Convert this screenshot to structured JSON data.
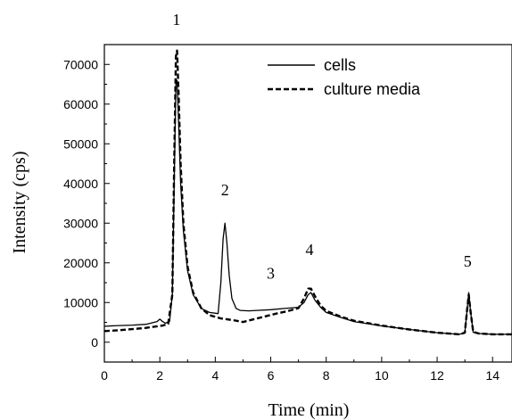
{
  "chart_data": {
    "type": "line",
    "xlabel": "Time (min)",
    "ylabel": "Intensity (cps)",
    "xlim": [
      0,
      14.7
    ],
    "ylim": [
      -5000,
      75000
    ],
    "xticks": [
      0,
      2,
      4,
      6,
      8,
      10,
      12,
      14
    ],
    "yticks": [
      0,
      10000,
      20000,
      30000,
      40000,
      50000,
      60000,
      70000
    ],
    "legend_position": "top-right",
    "series": [
      {
        "name": "cells",
        "style": "solid",
        "color": "#000000",
        "x": [
          0,
          0.5,
          1.0,
          1.5,
          1.9,
          2.0,
          2.1,
          2.2,
          2.35,
          2.45,
          2.52,
          2.58,
          2.62,
          2.68,
          2.75,
          2.85,
          3.0,
          3.2,
          3.5,
          3.8,
          4.1,
          4.2,
          4.28,
          4.35,
          4.42,
          4.5,
          4.6,
          4.75,
          4.9,
          5.2,
          5.5,
          6.0,
          6.5,
          7.0,
          7.2,
          7.35,
          7.45,
          7.6,
          7.8,
          8.0,
          8.5,
          9.0,
          10.0,
          11.0,
          12.0,
          12.8,
          13.0,
          13.08,
          13.14,
          13.2,
          13.3,
          13.5,
          14.0,
          14.7
        ],
        "y": [
          4000,
          4200,
          4300,
          4500,
          5200,
          5800,
          5200,
          4800,
          5200,
          12000,
          40000,
          65000,
          66000,
          55000,
          40000,
          28000,
          18000,
          12000,
          8500,
          7500,
          7200,
          15000,
          26000,
          30000,
          25000,
          17000,
          11000,
          8500,
          8000,
          7900,
          8000,
          8200,
          8500,
          8800,
          10000,
          12000,
          12500,
          10500,
          8800,
          7500,
          6300,
          5200,
          4100,
          3200,
          2400,
          2000,
          2300,
          8000,
          12500,
          8000,
          2500,
          2200,
          2000,
          2000
        ]
      },
      {
        "name": "culture media",
        "style": "dashed",
        "color": "#000000",
        "x": [
          0,
          0.5,
          1.0,
          1.5,
          1.9,
          2.1,
          2.3,
          2.45,
          2.52,
          2.58,
          2.62,
          2.68,
          2.75,
          2.85,
          3.0,
          3.2,
          3.5,
          3.8,
          4.2,
          4.6,
          5.0,
          5.4,
          5.8,
          6.2,
          6.6,
          7.0,
          7.2,
          7.35,
          7.45,
          7.6,
          7.8,
          8.0,
          8.5,
          9.0,
          10.0,
          11.0,
          12.0,
          12.8,
          13.0,
          13.08,
          13.14,
          13.2,
          13.3,
          13.5,
          14.0,
          14.7
        ],
        "y": [
          2800,
          3000,
          3300,
          3600,
          4000,
          4200,
          4600,
          12000,
          45000,
          72000,
          73500,
          62000,
          45000,
          30000,
          19000,
          12500,
          8500,
          6800,
          6000,
          5600,
          5100,
          5800,
          6500,
          7200,
          7800,
          8600,
          11000,
          13500,
          13500,
          11500,
          9200,
          7900,
          6500,
          5400,
          4200,
          3200,
          2400,
          2000,
          2400,
          8000,
          12000,
          8000,
          2600,
          2200,
          2000,
          2000
        ]
      }
    ],
    "annotations": [
      {
        "text": "1",
        "x": 2.6,
        "y": 80000
      },
      {
        "text": "2",
        "x": 4.35,
        "y": 37000
      },
      {
        "text": "3",
        "x": 6.0,
        "y": 16000
      },
      {
        "text": "4",
        "x": 7.4,
        "y": 22000
      },
      {
        "text": "5",
        "x": 13.1,
        "y": 19000
      }
    ]
  }
}
